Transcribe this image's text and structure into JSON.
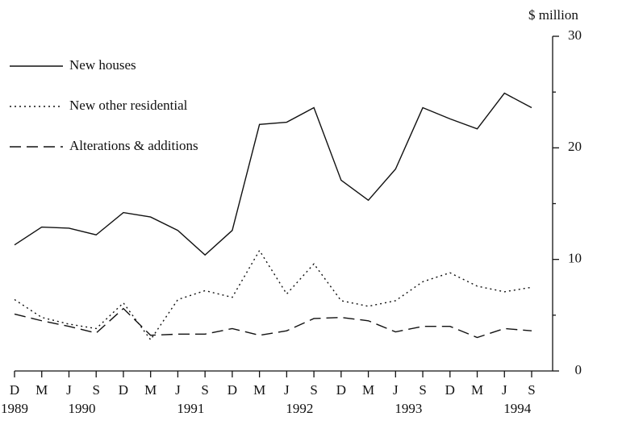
{
  "chart_data": {
    "type": "line",
    "y_label": "$ million",
    "categories": [
      "D",
      "M",
      "J",
      "S",
      "D",
      "M",
      "J",
      "S",
      "D",
      "M",
      "J",
      "S",
      "D",
      "M",
      "J",
      "S",
      "D",
      "M",
      "J",
      "S"
    ],
    "category_years": [
      "1989",
      null,
      "1990",
      null,
      null,
      null,
      "1991",
      null,
      null,
      null,
      "1992",
      null,
      null,
      null,
      "1993",
      null,
      null,
      null,
      "1994",
      null
    ],
    "series": [
      {
        "name": "New houses",
        "color": "#111111",
        "dash": "solid",
        "values": [
          11.3,
          12.9,
          12.8,
          12.2,
          14.2,
          13.8,
          12.6,
          10.4,
          12.6,
          22.1,
          22.3,
          23.6,
          17.1,
          15.3,
          18.1,
          23.6,
          22.6,
          21.7,
          24.9,
          23.6
        ]
      },
      {
        "name": "New other residential",
        "color": "#111111",
        "dash": "dotted",
        "values": [
          6.4,
          4.8,
          4.2,
          3.8,
          6.1,
          2.8,
          6.4,
          7.2,
          6.6,
          10.8,
          6.9,
          9.6,
          6.3,
          5.8,
          6.3,
          8.0,
          8.8,
          7.6,
          7.1,
          7.5
        ]
      },
      {
        "name": "Alterations & additions",
        "color": "#111111",
        "dash": "dashed",
        "values": [
          5.1,
          4.5,
          4.0,
          3.4,
          5.6,
          3.2,
          3.3,
          3.3,
          3.8,
          3.2,
          3.6,
          4.7,
          4.8,
          4.5,
          3.5,
          4.0,
          4.0,
          3.0,
          3.8,
          3.6
        ]
      }
    ],
    "ylim": [
      0,
      30
    ],
    "yticks": [
      0,
      10,
      20,
      30
    ],
    "yminor_ticks": [
      5,
      15,
      25
    ],
    "y_axis_side": "right"
  }
}
